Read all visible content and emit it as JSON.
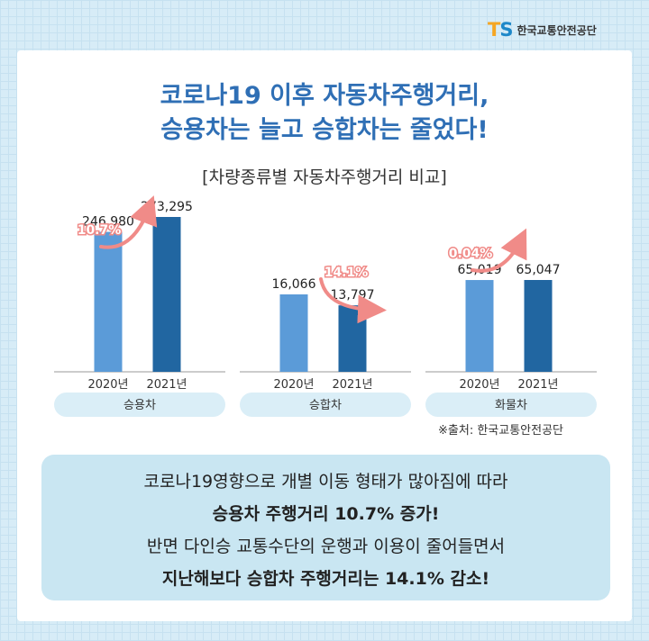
{
  "brand": {
    "mark_t": "T",
    "mark_s": "S",
    "name": "한국교통안전공단"
  },
  "headline": {
    "line1": "코로나19 이후 자동차주행거리,",
    "line2": "승용차는 늘고 승합차는 줄었다!"
  },
  "colors": {
    "bar_2020": "#5b9bd8",
    "bar_2021": "#2166a1",
    "arrow": "#f08b88",
    "title": "#2f6fb5",
    "pill": "#daeef7"
  },
  "chart_data": {
    "type": "bar",
    "title": "[차량종류별 자동차주행거리 비교]",
    "groups": [
      {
        "name": "승용차",
        "categories": [
          "2020년",
          "2021년"
        ],
        "values": [
          246980,
          273295
        ],
        "labels": [
          "246,980",
          "273,295"
        ],
        "change": "10.7%",
        "direction": "up"
      },
      {
        "name": "승합차",
        "categories": [
          "2020년",
          "2021년"
        ],
        "values": [
          16066,
          13797
        ],
        "labels": [
          "16,066",
          "13,797"
        ],
        "change": "14.1%",
        "direction": "down"
      },
      {
        "name": "화물차",
        "categories": [
          "2020년",
          "2021년"
        ],
        "values": [
          65019,
          65047
        ],
        "labels": [
          "65,019",
          "65,047"
        ],
        "change": "0.04%",
        "direction": "up"
      }
    ]
  },
  "source": "※출처: 한국교통안전공단",
  "info": {
    "line1": "코로나19영향으로 개별 이동 형태가 많아짐에 따라",
    "line2": "승용차 주행거리 10.7% 증가!",
    "line3": "반면 다인승 교통수단의 운행과 이용이 줄어들면서",
    "line4": "지난해보다 승합차 주행거리는 14.1% 감소!"
  }
}
